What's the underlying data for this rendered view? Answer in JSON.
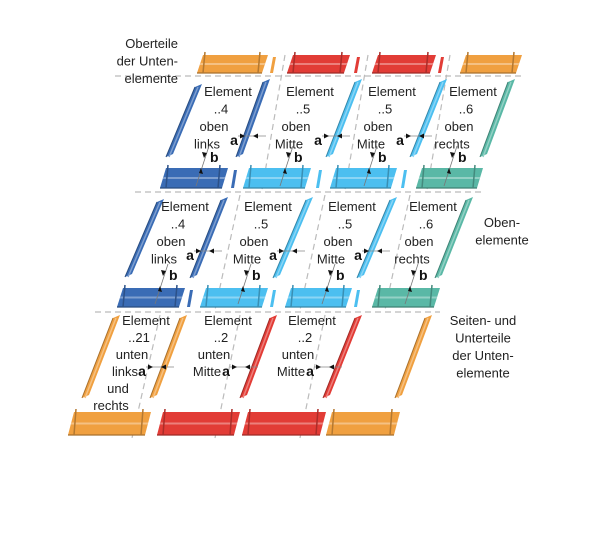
{
  "colors": {
    "dark_blue": "#3a6cb5",
    "light_blue": "#4cbff0",
    "teal": "#5ab8a6",
    "orange": "#f0a040",
    "red": "#e23c36"
  },
  "side_labels": {
    "top": [
      "Oberteile",
      "der Unten-",
      "elemente"
    ],
    "middle": [
      "Oben-",
      "elemente"
    ],
    "bottom": [
      "Seiten- und",
      "Unterteile",
      "der Unten-",
      "elemente"
    ]
  },
  "rows": [
    {
      "elements": [
        {
          "lines": [
            "Element",
            "..4",
            "oben",
            "links"
          ]
        },
        {
          "lines": [
            "Element",
            "..5",
            "oben",
            "Mitte"
          ]
        },
        {
          "lines": [
            "Element",
            "..5",
            "oben",
            "Mitte"
          ]
        },
        {
          "lines": [
            "Element",
            "..6",
            "oben",
            "rechts"
          ]
        }
      ]
    },
    {
      "elements": [
        {
          "lines": [
            "Element",
            "..4",
            "oben",
            "links"
          ]
        },
        {
          "lines": [
            "Element",
            "..5",
            "oben",
            "Mitte"
          ]
        },
        {
          "lines": [
            "Element",
            "..5",
            "oben",
            "Mitte"
          ]
        },
        {
          "lines": [
            "Element",
            "..6",
            "oben",
            "rechts"
          ]
        }
      ]
    },
    {
      "elements": [
        {
          "lines": [
            "Element",
            "..21",
            "unten",
            "links",
            "und",
            "rechts"
          ]
        },
        {
          "lines": [
            "Element",
            "..2",
            "unten",
            "Mitte"
          ]
        },
        {
          "lines": [
            "Element",
            "..2",
            "unten",
            "Mitte"
          ]
        }
      ]
    }
  ],
  "dimension_labels": {
    "a": "a",
    "b": "b"
  }
}
